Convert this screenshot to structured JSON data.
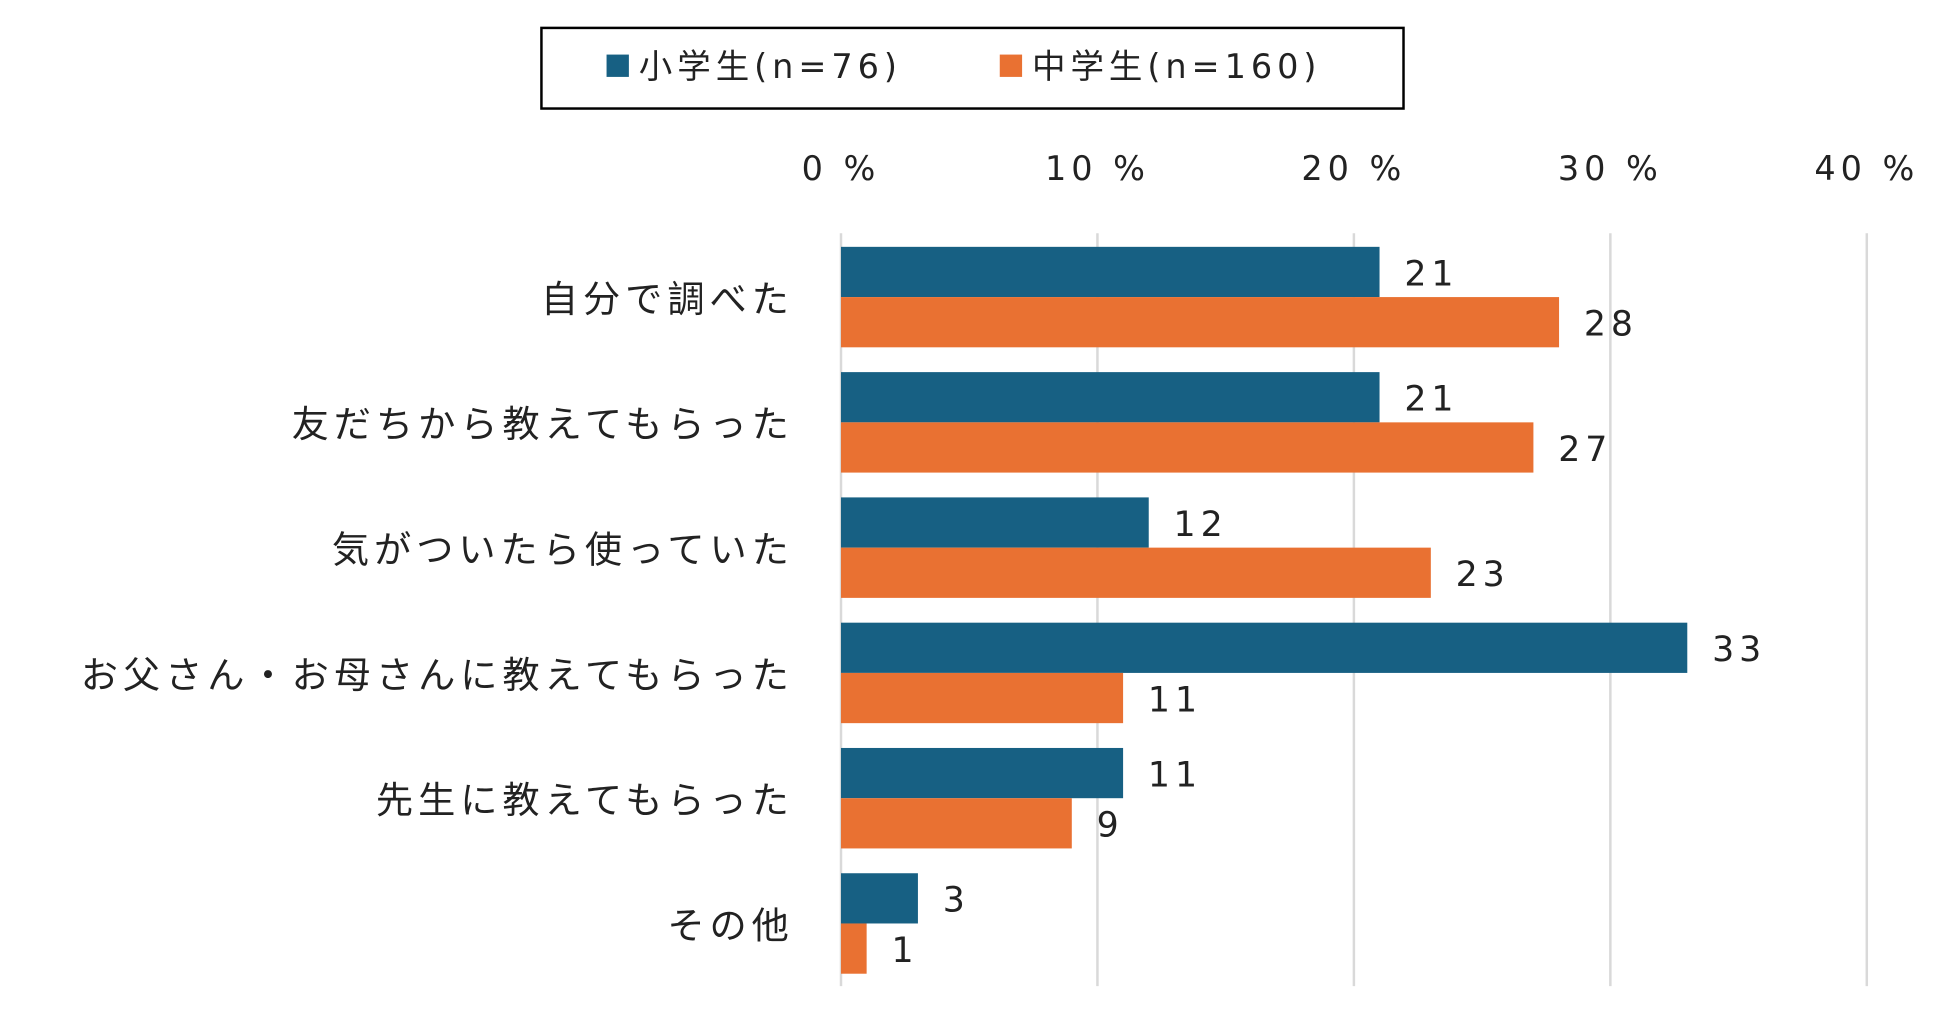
{
  "chart_data": {
    "type": "bar",
    "orientation": "horizontal",
    "categories": [
      "自分で調べた",
      "友だちから教えてもらった",
      "気がついたら使っていた",
      "お父さん・お母さんに教えてもらった",
      "先生に教えてもらった",
      "その他"
    ],
    "series": [
      {
        "name": "小学生(n=76)",
        "color": "#176083",
        "values": [
          21,
          21,
          12,
          33,
          11,
          3
        ]
      },
      {
        "name": "中学生(n=160)",
        "color": "#e97132",
        "values": [
          28,
          27,
          23,
          11,
          9,
          1
        ]
      }
    ],
    "xticks": [
      "0 %",
      "10 %",
      "20 %",
      "30 %",
      "40 %"
    ],
    "xlim": [
      0,
      40
    ],
    "legend_position": "top",
    "grid": true
  }
}
